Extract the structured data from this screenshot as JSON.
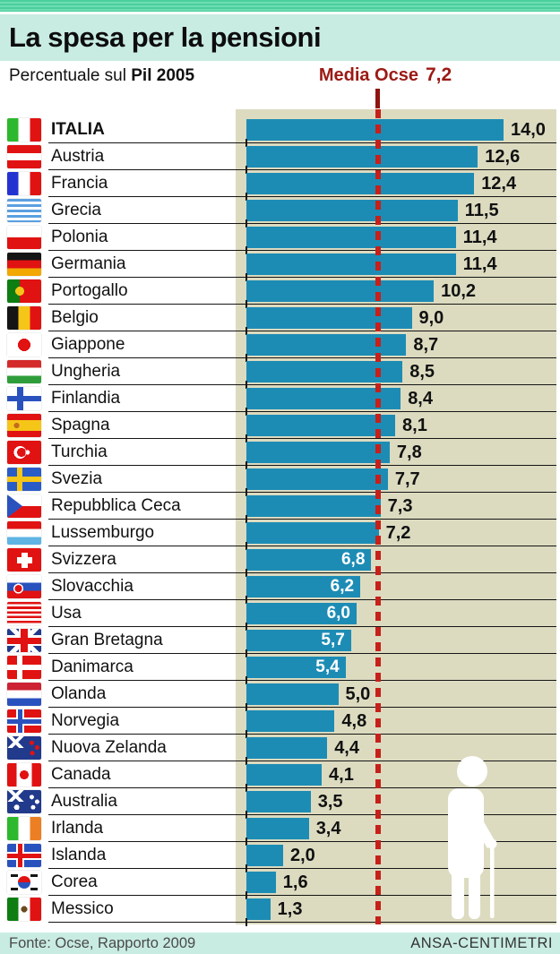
{
  "page": {
    "title": "La spesa per la pensioni",
    "subtitle_prefix": "Percentuale sul ",
    "subtitle_bold": "Pil 2005",
    "media_label": "Media Ocse",
    "media_value": "7,2",
    "source": "Fonte: Ocse, Rapporto 2009",
    "credit": "ANSA-CENTIMETRI"
  },
  "colors": {
    "bar_blue": "#1d8cb5",
    "panel_beige": "#dcdbc0",
    "band_mint": "#c9ece2",
    "strip_green": "#5ad3a4",
    "media_red": "#9b1a14",
    "dash_red": "#c6201a",
    "separator_black": "#151515"
  },
  "icons": {
    "silhouette": "elderly-person-cane-icon",
    "flag_suffix": "-flag-icon"
  },
  "chart_data": {
    "type": "bar",
    "orientation": "horizontal",
    "title": "La spesa per la pensioni",
    "xlabel": "Percentuale sul Pil 2005",
    "xlim": [
      0,
      17.5
    ],
    "grid": false,
    "reference_line": {
      "label": "Media Ocse",
      "value": 7.2,
      "display": "7,2"
    },
    "categories": [
      "ITALIA",
      "Austria",
      "Francia",
      "Grecia",
      "Polonia",
      "Germania",
      "Portogallo",
      "Belgio",
      "Giappone",
      "Ungheria",
      "Finlandia",
      "Spagna",
      "Turchia",
      "Svezia",
      "Repubblica Ceca",
      "Lussemburgo",
      "Svizzera",
      "Slovacchia",
      "Usa",
      "Gran Bretagna",
      "Danimarca",
      "Olanda",
      "Norvegia",
      "Nuova Zelanda",
      "Canada",
      "Australia",
      "Irlanda",
      "Islanda",
      "Corea",
      "Messico"
    ],
    "values": [
      14.0,
      12.6,
      12.4,
      11.5,
      11.4,
      11.4,
      10.2,
      9.0,
      8.7,
      8.5,
      8.4,
      8.1,
      7.8,
      7.7,
      7.3,
      7.2,
      6.8,
      6.2,
      6.0,
      5.7,
      5.4,
      5.0,
      4.8,
      4.4,
      4.1,
      3.5,
      3.4,
      2.0,
      1.6,
      1.3
    ],
    "display_values": [
      "14,0",
      "12,6",
      "12,4",
      "11,5",
      "11,4",
      "11,4",
      "10,2",
      "9,0",
      "8,7",
      "8,5",
      "8,4",
      "8,1",
      "7,8",
      "7,7",
      "7,3",
      "7,2",
      "6,8",
      "6,2",
      "6,0",
      "5,7",
      "5,4",
      "5,0",
      "4,8",
      "4,4",
      "4,1",
      "3,5",
      "3,4",
      "2,0",
      "1,6",
      "1,3"
    ],
    "label_inside": [
      false,
      false,
      false,
      false,
      false,
      false,
      false,
      false,
      false,
      false,
      false,
      false,
      false,
      false,
      false,
      false,
      true,
      true,
      true,
      true,
      true,
      false,
      false,
      false,
      false,
      false,
      false,
      false,
      false,
      false
    ],
    "flag_codes": [
      "it",
      "at",
      "fr",
      "gr",
      "pl",
      "de",
      "pt",
      "be",
      "jp",
      "hu",
      "fi",
      "es",
      "tr",
      "se",
      "cz",
      "lu",
      "ch",
      "sk",
      "us",
      "gb",
      "dk",
      "nl",
      "no",
      "nz",
      "ca",
      "au",
      "ie",
      "is",
      "kr",
      "mx"
    ],
    "flag_names": [
      "italy",
      "austria",
      "france",
      "greece",
      "poland",
      "germany",
      "portugal",
      "belgium",
      "japan",
      "hungary",
      "finland",
      "spain",
      "turkey",
      "sweden",
      "czech-republic",
      "luxembourg",
      "switzerland",
      "slovakia",
      "usa",
      "great-britain",
      "denmark",
      "netherlands",
      "norway",
      "new-zealand",
      "canada",
      "australia",
      "ireland",
      "iceland",
      "south-korea",
      "mexico"
    ],
    "emphasis_index": 0
  }
}
